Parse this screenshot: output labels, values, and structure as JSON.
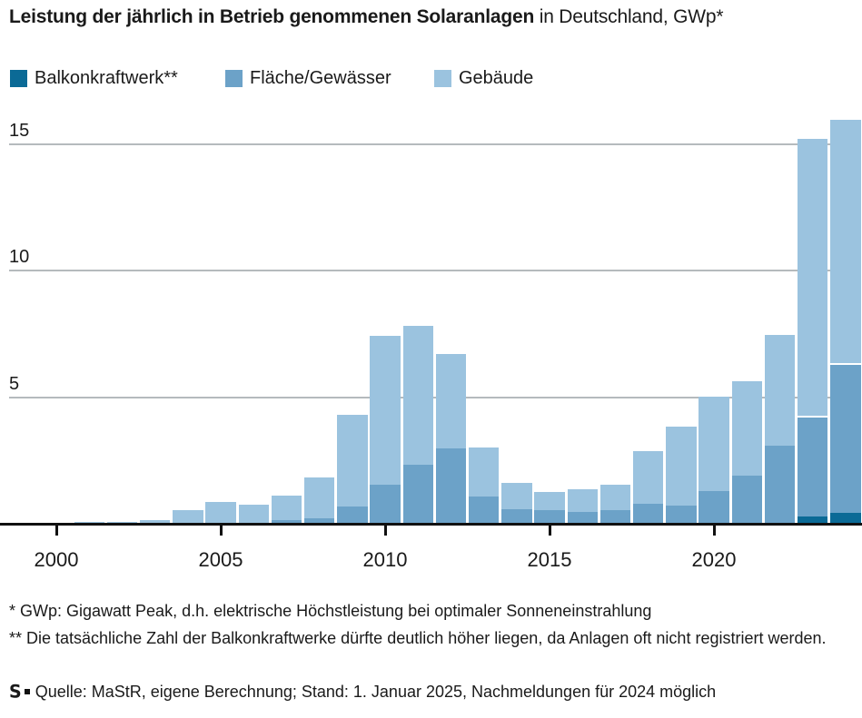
{
  "title": {
    "bold": "Leistung der jährlich in Betrieb genommenen Solaranlagen",
    "rest": " in Deutschland, GWp*"
  },
  "legend": [
    {
      "label": "Balkonkraftwerk**",
      "color": "#0B6A96"
    },
    {
      "label": "Fläche/Gewässer",
      "color": "#6CA2C8"
    },
    {
      "label": "Gebäude",
      "color": "#9BC3DF"
    }
  ],
  "chart_data": {
    "type": "bar",
    "stacked": true,
    "title": "Leistung der jährlich in Betrieb genommenen Solaranlagen in Deutschland, GWp*",
    "x": [
      2000,
      2001,
      2002,
      2003,
      2004,
      2005,
      2006,
      2007,
      2008,
      2009,
      2010,
      2011,
      2012,
      2013,
      2014,
      2015,
      2016,
      2017,
      2018,
      2019,
      2020,
      2021,
      2022,
      2023,
      2024
    ],
    "series": [
      {
        "name": "Balkonkraftwerk**",
        "color": "#0B6A96",
        "values": [
          0,
          0,
          0,
          0,
          0,
          0,
          0,
          0,
          0,
          0,
          0,
          0,
          0,
          0,
          0,
          0,
          0,
          0,
          0,
          0,
          0,
          0,
          0,
          0.29,
          0.43
        ]
      },
      {
        "name": "Fläche/Gewässer",
        "color": "#6CA2C8",
        "values": [
          0,
          0,
          0,
          0,
          0,
          0,
          0,
          0.14,
          0.22,
          0.68,
          1.55,
          2.33,
          2.98,
          1.08,
          0.58,
          0.54,
          0.47,
          0.54,
          0.79,
          0.72,
          1.3,
          1.9,
          3.1,
          3.98,
          5.91
        ]
      },
      {
        "name": "Gebäude",
        "color": "#9BC3DF",
        "values": [
          0.04,
          0.06,
          0.08,
          0.13,
          0.55,
          0.86,
          0.76,
          1.05,
          1.7,
          3.7,
          5.95,
          5.57,
          3.8,
          2.0,
          1.1,
          0.79,
          0.97,
          1.07,
          2.16,
          3.2,
          3.8,
          3.8,
          4.45,
          11.0,
          9.71
        ]
      }
    ],
    "xticks": [
      2000,
      2005,
      2010,
      2015,
      2020
    ],
    "yticks": [
      5,
      10,
      15
    ],
    "ylim": [
      0,
      16.5
    ],
    "ylabel": "GWp",
    "grid": true,
    "legend_position": "top"
  },
  "footnotes": [
    "* GWp: Gigawatt Peak, d.h. elektrische Höchstleistung bei optimaler Sonneneinstrahlung",
    "** Die tatsächliche Zahl der Balkonkraftwerke dürfte deutlich höher liegen, da Anlagen oft nicht registriert werden."
  ],
  "source": {
    "logo_letter": "S",
    "text": "Quelle: MaStR, eigene Berechnung; Stand: 1. Januar 2025, Nachmeldungen für 2024 möglich"
  }
}
